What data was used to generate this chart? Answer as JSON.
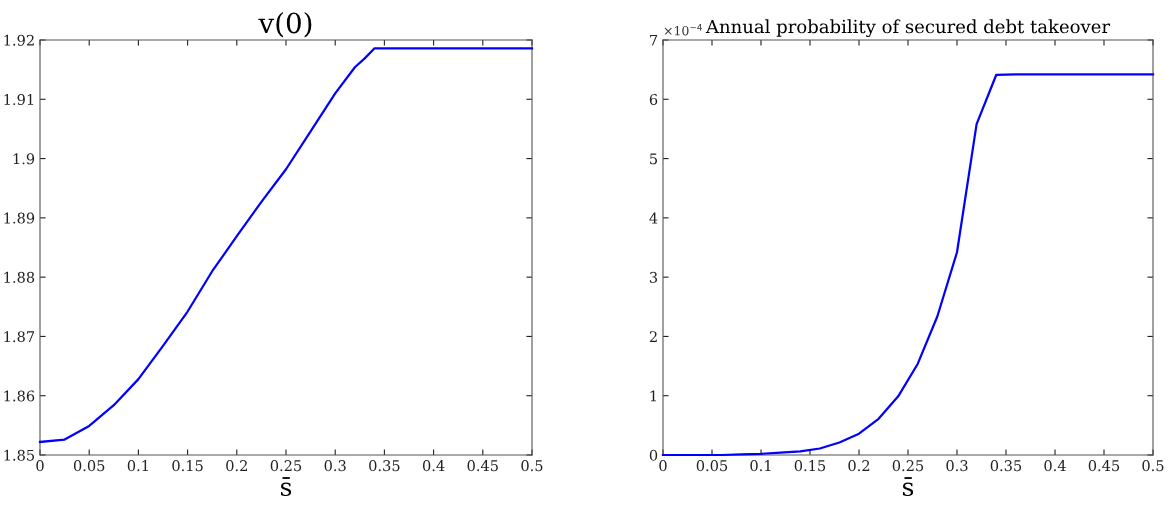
{
  "chart_data": [
    {
      "type": "line",
      "title": "v(0)",
      "xlabel": "s̄",
      "grid": false,
      "legend": false,
      "x": [
        0,
        0.025,
        0.05,
        0.075,
        0.1,
        0.125,
        0.15,
        0.175,
        0.2,
        0.225,
        0.25,
        0.275,
        0.3,
        0.32,
        0.33,
        0.34,
        0.5
      ],
      "series": [
        {
          "color": "#0000ff",
          "values": [
            1.8522,
            1.8526,
            1.8549,
            1.8584,
            1.8628,
            1.8684,
            1.8742,
            1.881,
            1.8869,
            1.8927,
            1.8982,
            1.9046,
            1.911,
            1.9154,
            1.9169,
            1.9186,
            1.9186
          ]
        }
      ],
      "xlim": [
        0,
        0.5
      ],
      "xticks": [
        0,
        0.05,
        0.1,
        0.15,
        0.2,
        0.25,
        0.3,
        0.35,
        0.4,
        0.45,
        0.5
      ],
      "ylim": [
        1.85,
        1.92
      ],
      "yticks": [
        1.85,
        1.86,
        1.87,
        1.88,
        1.89,
        1.9,
        1.91,
        1.92
      ]
    },
    {
      "type": "line",
      "title": "Annual probability of secured debt takeover",
      "xlabel": "s̄",
      "grid": false,
      "legend": false,
      "annotations": [
        "×10$^{−4}$"
      ],
      "x": [
        0,
        0.02,
        0.04,
        0.06,
        0.08,
        0.1,
        0.12,
        0.14,
        0.16,
        0.18,
        0.2,
        0.22,
        0.24,
        0.26,
        0.28,
        0.3,
        0.32,
        0.34,
        0.36,
        0.5
      ],
      "series": [
        {
          "color": "#0000ff",
          "values": [
            0,
            0,
            0,
            0,
            0.01,
            0.02,
            0.04,
            0.06,
            0.11,
            0.21,
            0.36,
            0.61,
            0.99,
            1.54,
            2.34,
            3.42,
            5.58,
            6.41,
            6.42,
            6.42
          ]
        }
      ],
      "xlim": [
        0,
        0.5
      ],
      "xticks": [
        0,
        0.05,
        0.1,
        0.15,
        0.2,
        0.25,
        0.3,
        0.35,
        0.4,
        0.45,
        0.5
      ],
      "ylim": [
        0,
        7
      ],
      "yticks": [
        0,
        1,
        2,
        3,
        4,
        5,
        6,
        7
      ]
    }
  ]
}
